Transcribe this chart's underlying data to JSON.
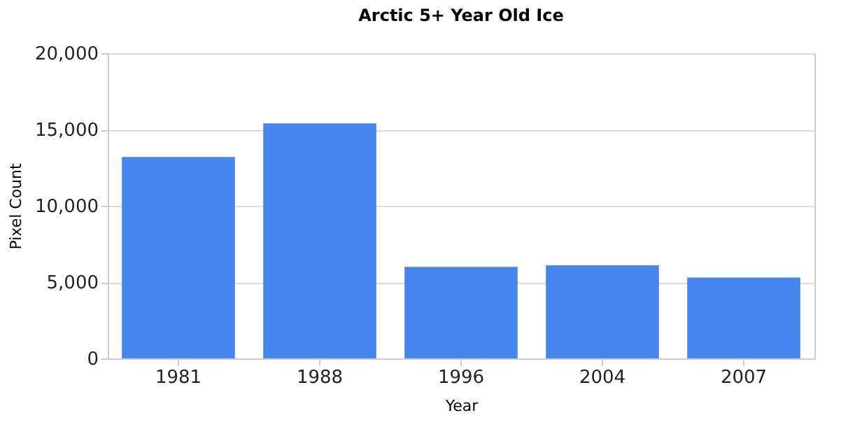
{
  "chart_data": {
    "type": "bar",
    "title": "Arctic 5+ Year Old Ice",
    "xlabel": "Year",
    "ylabel": "Pixel Count",
    "categories": [
      "1981",
      "1988",
      "1996",
      "2004",
      "2007"
    ],
    "values": [
      13200,
      15400,
      6000,
      6100,
      5300
    ],
    "color": "#4684ee",
    "ylim": [
      0,
      20000
    ],
    "yticks": [
      0,
      {
        "value": 5000,
        "label": "5,000"
      },
      {
        "value": 10000,
        "label": "10,000"
      },
      {
        "value": 15000,
        "label": "15,000"
      },
      {
        "value": 20000,
        "label": "20,000"
      }
    ],
    "grid": "y"
  }
}
